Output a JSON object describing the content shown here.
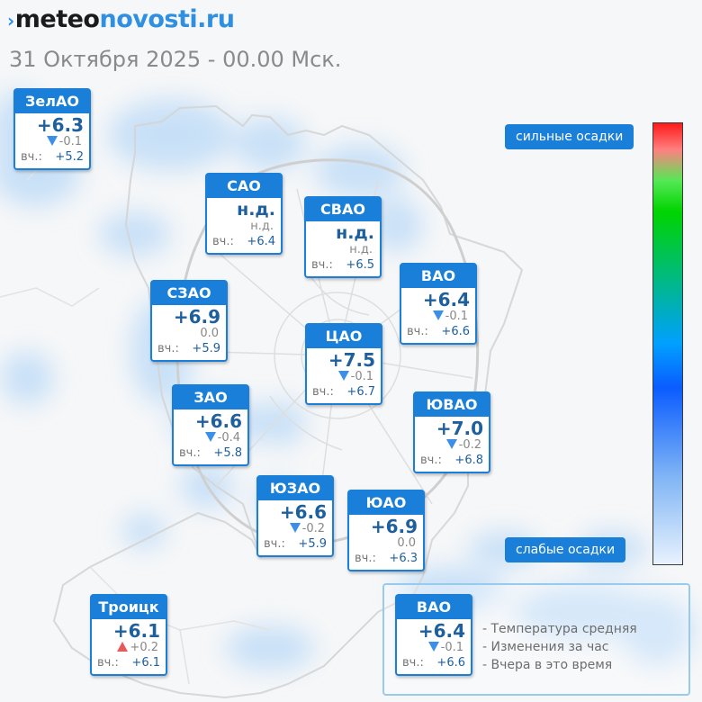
{
  "logo": {
    "part1": "meteo",
    "part2": "novosti.ru"
  },
  "datetime": "31 Октября 2025 - 00.00 Мск.",
  "yest_label": "вч.:",
  "districts": [
    {
      "id": "zelao",
      "name": "ЗелАО",
      "temp": "+6.3",
      "change": "-0.1",
      "trend": "down",
      "yesterday": "+5.2"
    },
    {
      "id": "sao",
      "name": "САО",
      "temp": "н.д.",
      "change": "н.д.",
      "trend": "none",
      "yesterday": "+6.4"
    },
    {
      "id": "svao",
      "name": "СВАО",
      "temp": "н.д.",
      "change": "н.д.",
      "trend": "none",
      "yesterday": "+6.5"
    },
    {
      "id": "vao",
      "name": "ВАО",
      "temp": "+6.4",
      "change": "-0.1",
      "trend": "down",
      "yesterday": "+6.6"
    },
    {
      "id": "szao",
      "name": "СЗАО",
      "temp": "+6.9",
      "change": "0.0",
      "trend": "none",
      "yesterday": "+5.9"
    },
    {
      "id": "cao",
      "name": "ЦАО",
      "temp": "+7.5",
      "change": "-0.1",
      "trend": "down",
      "yesterday": "+6.7"
    },
    {
      "id": "zao",
      "name": "ЗАО",
      "temp": "+6.6",
      "change": "-0.4",
      "trend": "down",
      "yesterday": "+5.8"
    },
    {
      "id": "yuvao",
      "name": "ЮВАО",
      "temp": "+7.0",
      "change": "-0.2",
      "trend": "down",
      "yesterday": "+6.8"
    },
    {
      "id": "yuzao",
      "name": "ЮЗАО",
      "temp": "+6.6",
      "change": "-0.2",
      "trend": "down",
      "yesterday": "+5.9"
    },
    {
      "id": "yuao",
      "name": "ЮАО",
      "temp": "+6.9",
      "change": "0.0",
      "trend": "none",
      "yesterday": "+6.3"
    },
    {
      "id": "troitsk",
      "name": "Троицк",
      "temp": "+6.1",
      "change": "+0.2",
      "trend": "up",
      "yesterday": "+6.1"
    }
  ],
  "legend": {
    "strong": "сильные осадки",
    "weak": "слабые осадки",
    "colors": {
      "top": "#ff1a1a",
      "green": "#00d400",
      "blue": "#0a5cff",
      "bottom": "#e8f2fd"
    }
  },
  "info": {
    "sample": {
      "name": "ВАО",
      "temp": "+6.4",
      "change": "-0.1",
      "trend": "down",
      "yesterday": "+6.6"
    },
    "lines": [
      "- Температура средняя",
      "- Изменения за час",
      "- Вчера в это время"
    ]
  },
  "colors": {
    "accent": "#1a7fd8",
    "temp_text": "#1e5f9e",
    "trend_down": "#3b8fe8",
    "trend_up": "#e85a5a"
  }
}
